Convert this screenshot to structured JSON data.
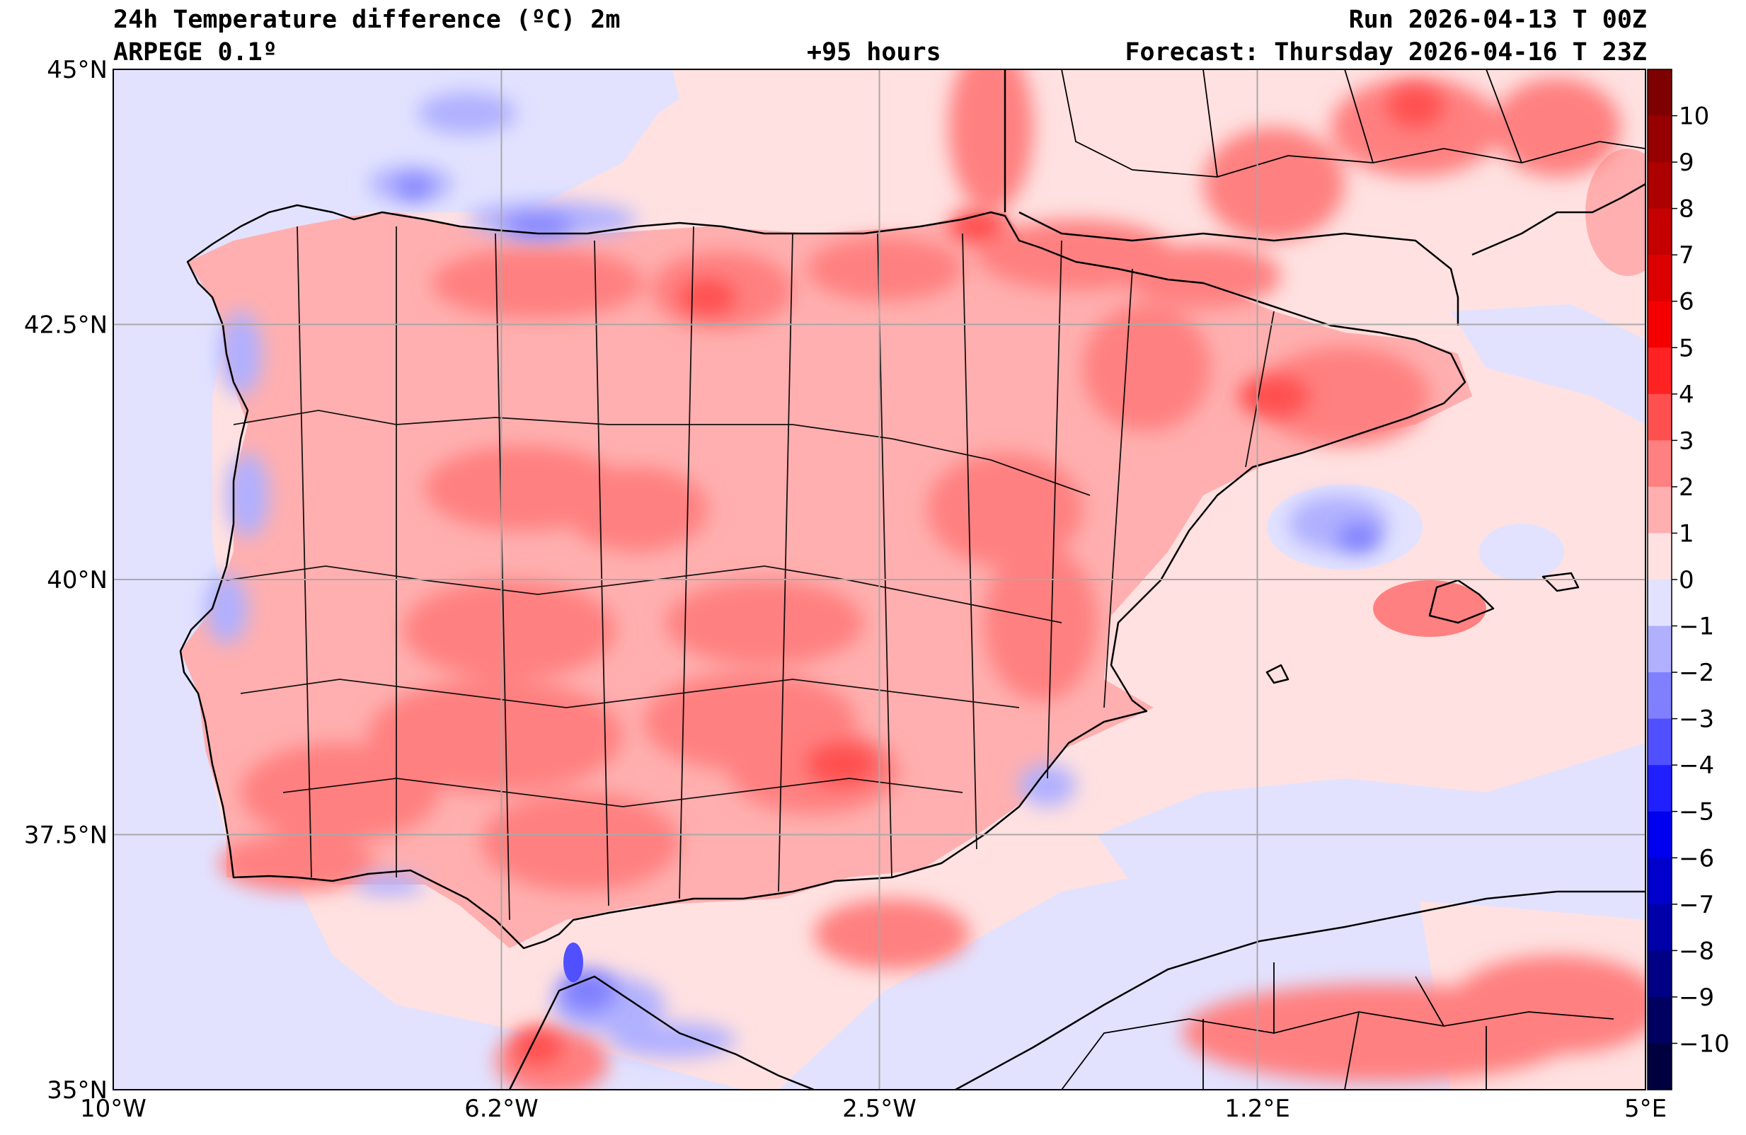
{
  "header": {
    "title": "24h Temperature difference (ºC) 2m",
    "model": "ARPEGE 0.1º",
    "lead_time": "+95 hours",
    "run": "Run 2026-04-13 T 00Z",
    "forecast": "Forecast: Thursday 2026-04-16 T 23Z"
  },
  "map": {
    "lat_range": [
      35,
      45
    ],
    "lon_range": [
      -10,
      5
    ],
    "lat_ticks": [
      {
        "value": 45,
        "label": "45°N"
      },
      {
        "value": 42.5,
        "label": "42.5°N"
      },
      {
        "value": 40,
        "label": "40°N"
      },
      {
        "value": 37.5,
        "label": "37.5°N"
      },
      {
        "value": 35,
        "label": "35°N"
      }
    ],
    "lon_ticks": [
      {
        "value": -10,
        "label": "10°W"
      },
      {
        "value": -6.2,
        "label": "6.2°W"
      },
      {
        "value": -2.5,
        "label": "2.5°W"
      },
      {
        "value": 1.2,
        "label": "1.2°E"
      },
      {
        "value": 5,
        "label": "5°E"
      }
    ],
    "grid": true
  },
  "colorbar": {
    "labels": [
      "10",
      "9",
      "8",
      "7",
      "6",
      "5",
      "4",
      "3",
      "2",
      "1",
      "0",
      "−1",
      "−2",
      "−3",
      "−4",
      "−5",
      "−6",
      "−7",
      "−8",
      "−9",
      "−10"
    ],
    "colors": [
      "#7f0000",
      "#960000",
      "#ad0000",
      "#c40000",
      "#dd0000",
      "#f50000",
      "#ff2222",
      "#ff5050",
      "#ff8080",
      "#ffafaf",
      "#ffe1e1",
      "#e2e2ff",
      "#b0b0ff",
      "#8080ff",
      "#5050ff",
      "#2020ff",
      "#0000f0",
      "#0000cc",
      "#0000a8",
      "#000084",
      "#000060",
      "#000040"
    ]
  }
}
